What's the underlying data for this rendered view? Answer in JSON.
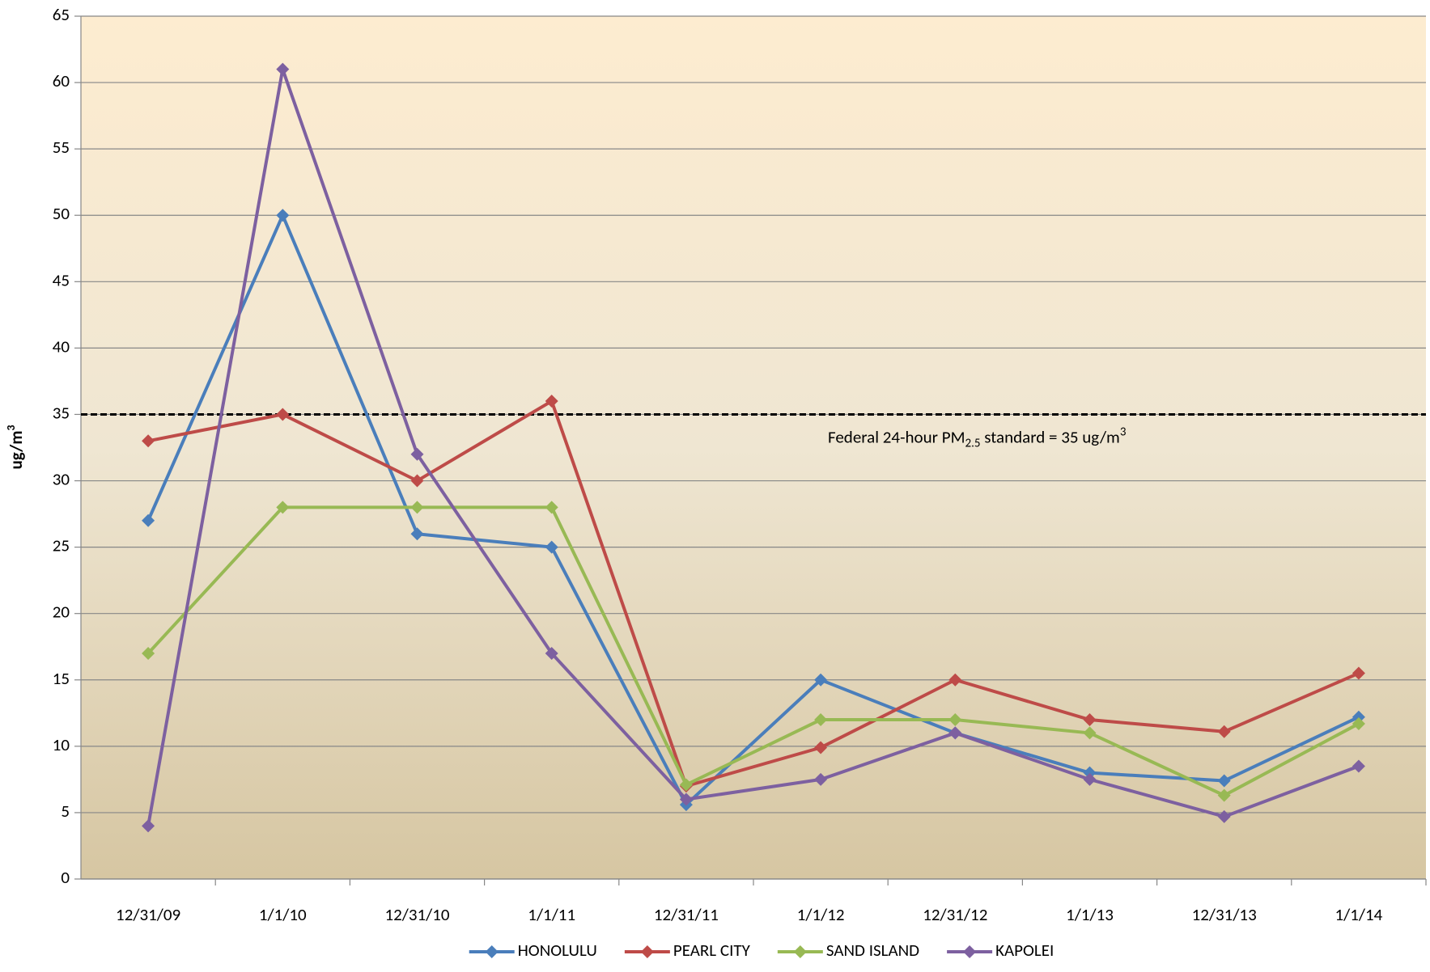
{
  "chart_data": {
    "type": "line",
    "y_label_parts": [
      "ug/m",
      "3"
    ],
    "categories": [
      "12/31/09",
      "1/1/10",
      "12/31/10",
      "1/1/11",
      "12/31/11",
      "1/1/12",
      "12/31/12",
      "1/1/13",
      "12/31/13",
      "1/1/14"
    ],
    "series": [
      {
        "name": "HONOLULU",
        "color": "#4a7ebb",
        "values": [
          27,
          50,
          26,
          25,
          5.6,
          15,
          11,
          8,
          7.4,
          12.2
        ]
      },
      {
        "name": "PEARL CITY",
        "color": "#be4b48",
        "values": [
          33,
          35,
          30,
          36,
          7,
          9.9,
          15,
          12,
          11.1,
          15.5
        ]
      },
      {
        "name": "SAND ISLAND",
        "color": "#98b954",
        "values": [
          17,
          28,
          28,
          28,
          7.1,
          12,
          12,
          11,
          6.3,
          11.7
        ]
      },
      {
        "name": "KAPOLEI",
        "color": "#7d60a0",
        "values": [
          4,
          61,
          32,
          17,
          6,
          7.5,
          11,
          7.5,
          4.7,
          8.5
        ]
      }
    ],
    "ylim": [
      0,
      65
    ],
    "yticks": [
      0,
      5,
      10,
      15,
      20,
      25,
      30,
      35,
      40,
      45,
      50,
      55,
      60,
      65
    ],
    "grid": true,
    "legend": "bottom",
    "reference_line": {
      "value": 35,
      "label_parts": [
        "Federal 24-hour PM",
        "2.5",
        " standard = 35 ug/m",
        "3"
      ]
    }
  }
}
